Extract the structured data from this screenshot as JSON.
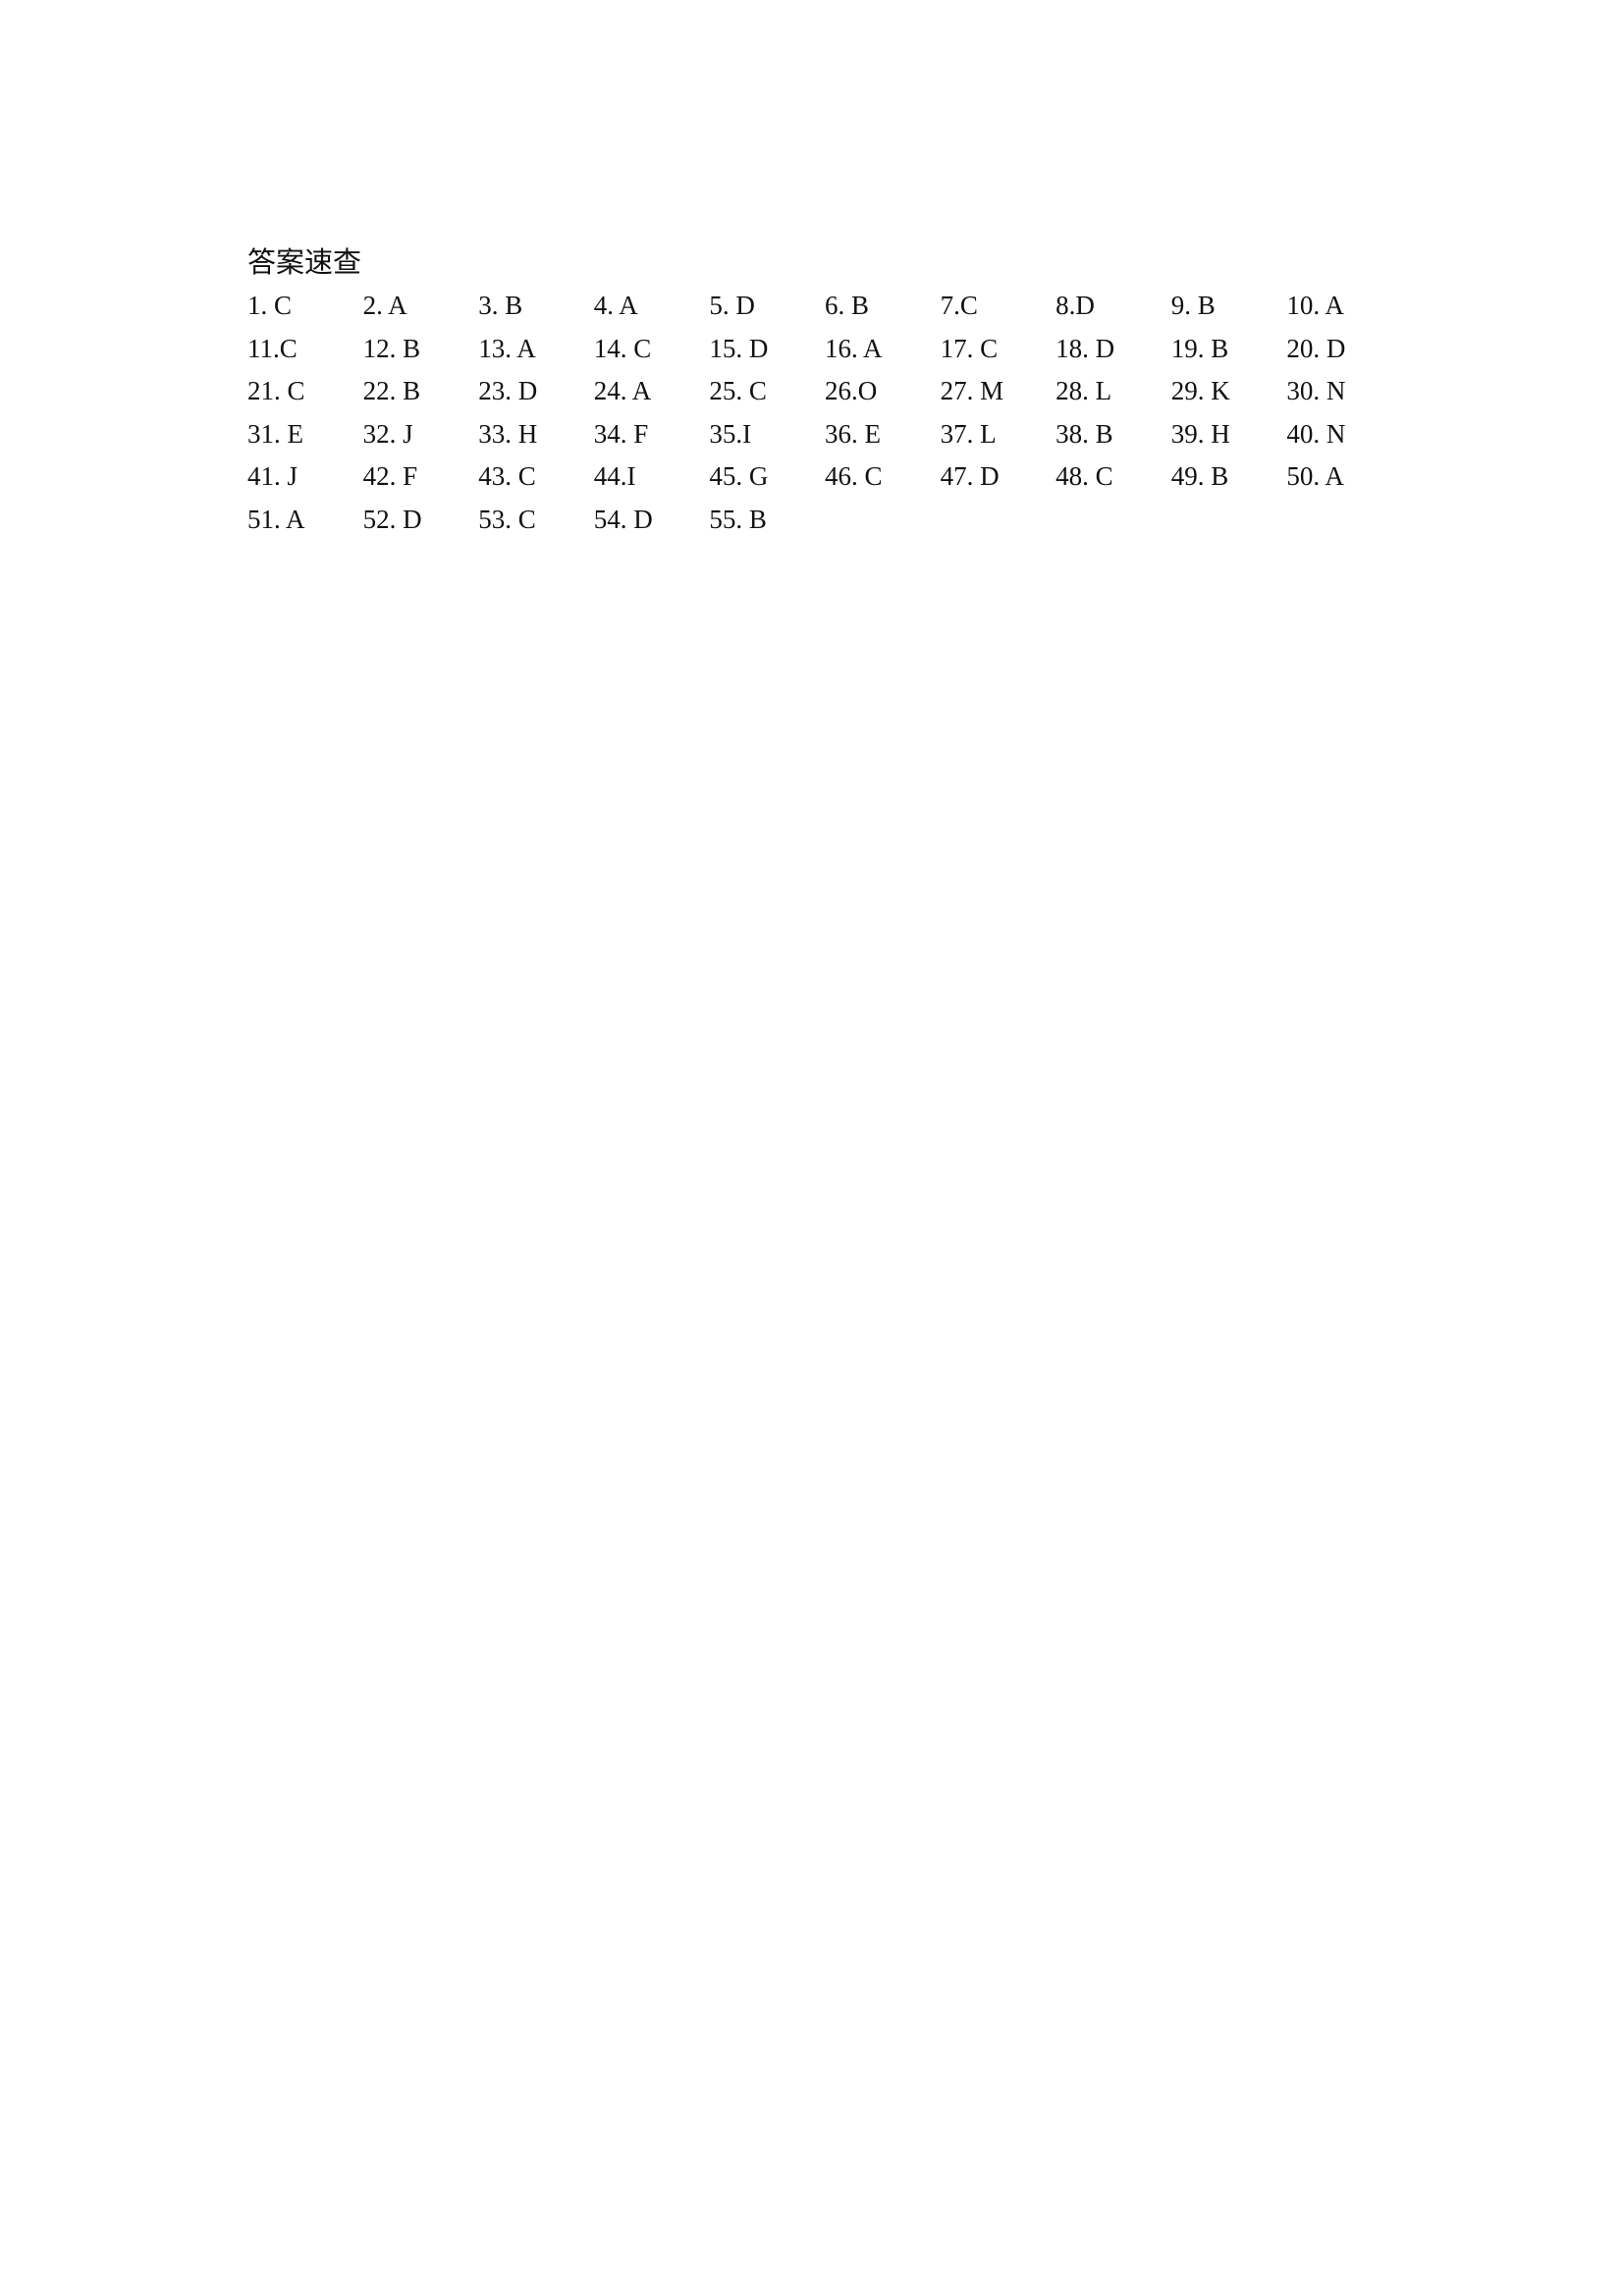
{
  "title": "答案速查",
  "answers": [
    "1. C",
    "2. A",
    "3. B",
    "4. A",
    "5. D",
    "6. B",
    "7.C",
    "8.D",
    "9. B",
    "10. A",
    "11.C",
    "12. B",
    "13. A",
    "14. C",
    "15. D",
    "16. A",
    "17. C",
    "18. D",
    "19. B",
    "20. D",
    "21. C",
    "22. B",
    "23. D",
    "24. A",
    "25. C",
    "26.O",
    "27. M",
    "28. L",
    "29. K",
    "30. N",
    "31. E",
    "32. J",
    "33. H",
    "34. F",
    "35.I",
    "36. E",
    "37. L",
    "38. B",
    "39. H",
    "40. N",
    "41. J",
    "42. F",
    "43. C",
    "44.I",
    "45. G",
    "46. C",
    "47. D",
    "48. C",
    "49. B",
    "50. A",
    "51. A",
    "52. D",
    "53. C",
    "54. D",
    "55. B"
  ]
}
